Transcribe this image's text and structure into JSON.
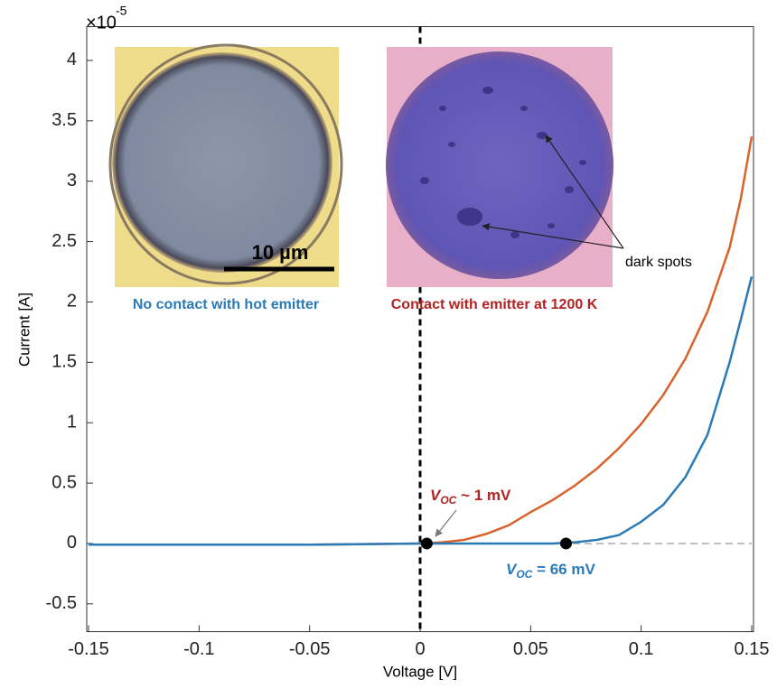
{
  "chart_data": {
    "type": "line",
    "x_label": "Voltage [V]",
    "y_label": "Current [A]",
    "y_scale_base": "×10",
    "y_scale_exponent": "-5",
    "xlim": [
      -0.15,
      0.15
    ],
    "ylim": [
      -0.73,
      4.28
    ],
    "xticks": [
      -0.15,
      -0.1,
      -0.05,
      0,
      0.05,
      0.1,
      0.15
    ],
    "yticks": [
      -0.5,
      0,
      0.5,
      1,
      1.5,
      2,
      2.5,
      3,
      3.5,
      4
    ],
    "x": [
      -0.15,
      -0.1,
      -0.05,
      0,
      0.01,
      0.02,
      0.03,
      0.04,
      0.05,
      0.06,
      0.07,
      0.08,
      0.09,
      0.1,
      0.11,
      0.12,
      0.13,
      0.14,
      0.145,
      0.15
    ],
    "series": [
      {
        "color": "#d9622b",
        "values": [
          -0.01,
          -0.01,
          -0.01,
          0,
          0.01,
          0.03,
          0.08,
          0.15,
          0.26,
          0.36,
          0.48,
          0.62,
          0.79,
          0.99,
          1.23,
          1.53,
          1.92,
          2.45,
          2.85,
          3.37
        ]
      },
      {
        "color": "#2a7ab8",
        "values": [
          -0.01,
          -0.01,
          -0.01,
          0,
          0,
          0,
          0,
          0,
          0,
          0,
          0.01,
          0.03,
          0.07,
          0.18,
          0.32,
          0.55,
          0.9,
          1.5,
          1.85,
          2.21
        ]
      }
    ],
    "reference_lines": {
      "x": 0,
      "y": 0
    },
    "markers": [
      {
        "x": 0.003,
        "y": 0
      },
      {
        "x": 0.066,
        "y": 0
      }
    ],
    "annotations": [
      {
        "symbol": "V",
        "subscript": "OC",
        "text": " ~ 1 mV",
        "color": "#b22222"
      },
      {
        "symbol": "V",
        "subscript": "OC",
        "text": " = 66 mV",
        "color": "#2a7ab8"
      }
    ],
    "insets": {
      "left_caption": "No contact with hot emitter",
      "right_caption": "Contact with emitter at 1200 K",
      "scale_bar": "10 µm",
      "arrow_label": "dark spots"
    }
  }
}
